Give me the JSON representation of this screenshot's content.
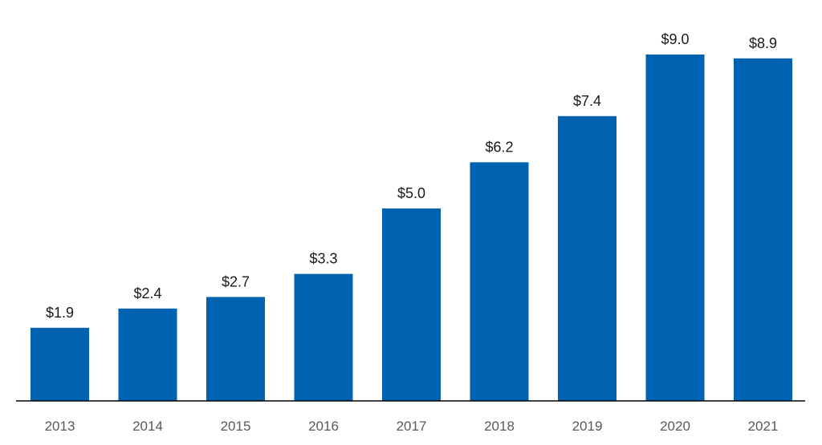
{
  "chart_data": {
    "type": "bar",
    "categories": [
      "2013",
      "2014",
      "2015",
      "2016",
      "2017",
      "2018",
      "2019",
      "2020",
      "2021"
    ],
    "values": [
      1.9,
      2.4,
      2.7,
      3.3,
      5.0,
      6.2,
      7.4,
      9.0,
      8.9
    ],
    "data_labels": [
      "$1.9",
      "$2.4",
      "$2.7",
      "$3.3",
      "$5.0",
      "$6.2",
      "$7.4",
      "$9.0",
      "$8.9"
    ],
    "title": "",
    "xlabel": "",
    "ylabel": "",
    "ylim": [
      0,
      9.0
    ],
    "grid": false,
    "legend": "none",
    "colors": {
      "bar": "#0063b1",
      "axis": "#000000",
      "tick_text": "#595959",
      "label_text": "#1a1a1a"
    }
  }
}
